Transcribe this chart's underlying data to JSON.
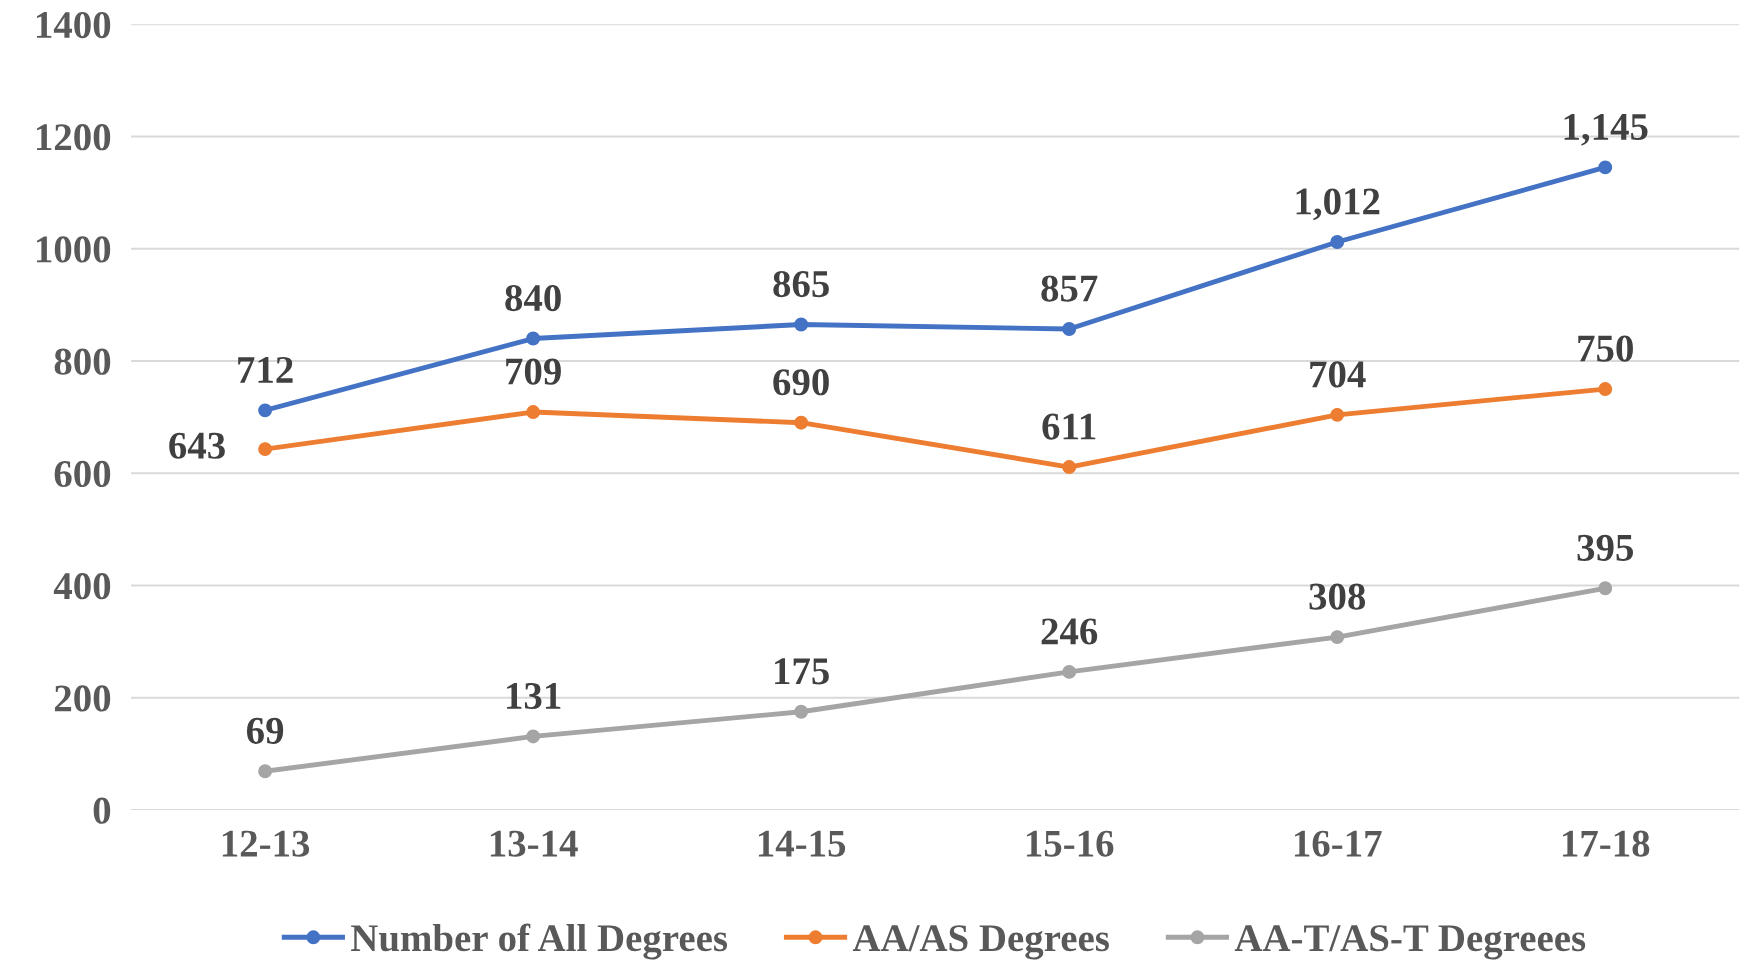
{
  "chart_data": {
    "type": "line",
    "categories": [
      "12-13",
      "13-14",
      "14-15",
      "15-16",
      "16-17",
      "17-18"
    ],
    "series": [
      {
        "name": "Number of All Degrees",
        "color": "#4472c4",
        "values": [
          712,
          840,
          865,
          857,
          1012,
          1145
        ],
        "value_labels": [
          "712",
          "840",
          "865",
          "857",
          "1,012",
          "1,145"
        ]
      },
      {
        "name": "AA/AS Degrees",
        "color": "#ed7d31",
        "values": [
          643,
          709,
          690,
          611,
          704,
          750
        ],
        "value_labels": [
          "643",
          "709",
          "690",
          "611",
          "704",
          "750"
        ]
      },
      {
        "name": "AA-T/AS-T Degreees",
        "color": "#a5a5a5",
        "values": [
          69,
          131,
          175,
          246,
          308,
          395
        ],
        "value_labels": [
          "69",
          "131",
          "175",
          "246",
          "308",
          "395"
        ]
      }
    ],
    "ylim": [
      0,
      1400
    ],
    "yticks": [
      0,
      200,
      400,
      600,
      800,
      1000,
      1200,
      1400
    ],
    "grid": "y",
    "legend": "bottom",
    "marker": "circle",
    "line_style": "solid"
  }
}
